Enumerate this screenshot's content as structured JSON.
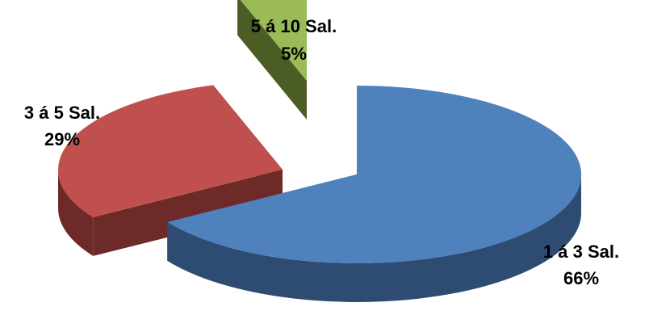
{
  "chart_data": {
    "type": "pie",
    "style": "3d-exploded",
    "legend": "none",
    "slices": [
      {
        "label": "1 á 3 Sal.",
        "percent_label": "66%",
        "value": 66,
        "color": "#4F81BD",
        "side_color": "#2E4C71"
      },
      {
        "label": "3 á 5 Sal.",
        "percent_label": "29%",
        "value": 29,
        "color": "#C0504D",
        "side_color": "#6E2A28"
      },
      {
        "label": "5 á 10 Sal.",
        "percent_label": "5%",
        "value": 5,
        "color": "#9BBB59",
        "side_color": "#4B5C24"
      }
    ]
  }
}
